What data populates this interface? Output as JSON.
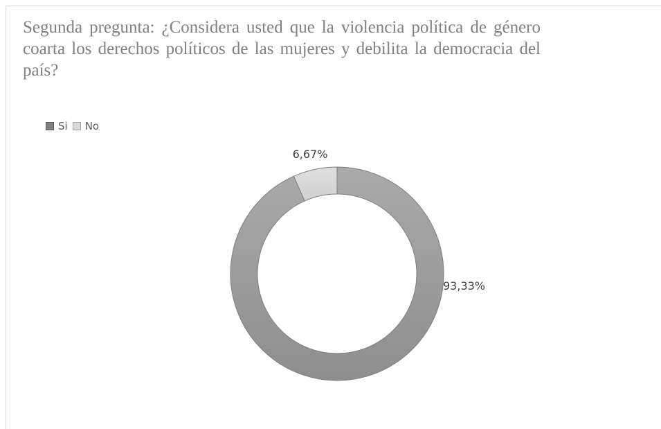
{
  "chart_data": {
    "type": "pie",
    "variant": "doughnut",
    "title": "Segunda pregunta: ¿Considera usted que la violencia política de género coarta los derechos políticos de las mujeres y debilita la democracia del país?",
    "categories": [
      "Si",
      "No"
    ],
    "values": [
      93.33,
      6.67
    ],
    "labels": [
      "93,33%",
      "6,67%"
    ],
    "colors": [
      "#a6a6a6",
      "#d9d9d9"
    ],
    "legend_colors": [
      "#7f7f7f",
      "#d9d9d9"
    ],
    "legend_position": "top-left"
  }
}
